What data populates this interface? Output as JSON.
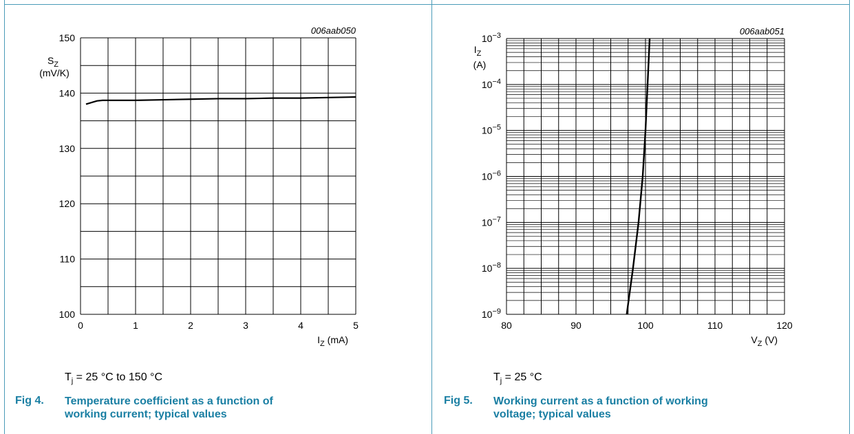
{
  "chart_data": [
    {
      "type": "line",
      "figure_id": "006aab050",
      "ylabel": "S",
      "ylabel_sub": "Z",
      "ylabel_unit": "(mV/K)",
      "xlabel": "I",
      "xlabel_sub": "Z",
      "xlabel_unit": "(mA)",
      "xlim": [
        0,
        5
      ],
      "ylim": [
        100,
        150
      ],
      "xticks": [
        0,
        1,
        2,
        3,
        4,
        5
      ],
      "xtick_labels": [
        "0",
        "1",
        "2",
        "3",
        "4",
        "5"
      ],
      "yticks": [
        100,
        110,
        120,
        130,
        140,
        150
      ],
      "ytick_labels": [
        "100",
        "110",
        "120",
        "130",
        "140",
        "150"
      ],
      "grid": true,
      "series": [
        {
          "x": [
            0.1,
            0.2,
            0.3,
            0.4,
            0.6,
            1.0,
            1.5,
            2.0,
            2.5,
            3.0,
            3.5,
            4.0,
            4.5,
            5.0
          ],
          "y": [
            138.0,
            138.3,
            138.6,
            138.7,
            138.7,
            138.7,
            138.8,
            138.9,
            139.0,
            139.0,
            139.1,
            139.1,
            139.2,
            139.3
          ]
        }
      ]
    },
    {
      "type": "line",
      "figure_id": "006aab051",
      "ylabel": "I",
      "ylabel_sub": "Z",
      "ylabel_unit": "(A)",
      "xlabel": "V",
      "xlabel_sub": "Z",
      "xlabel_unit": "(V)",
      "xlim": [
        80,
        120
      ],
      "ylim": [
        1e-09,
        0.001
      ],
      "yscale": "log",
      "xticks": [
        80,
        90,
        100,
        110,
        120
      ],
      "xtick_labels": [
        "80",
        "90",
        "100",
        "110",
        "120"
      ],
      "yticks": [
        1e-09,
        1e-08,
        1e-07,
        1e-06,
        1e-05,
        0.0001,
        0.001
      ],
      "ytick_labels": [
        {
          "base": "10",
          "exp": "−9"
        },
        {
          "base": "10",
          "exp": "−8"
        },
        {
          "base": "10",
          "exp": "−7"
        },
        {
          "base": "10",
          "exp": "−6"
        },
        {
          "base": "10",
          "exp": "−5"
        },
        {
          "base": "10",
          "exp": "−4"
        },
        {
          "base": "10",
          "exp": "−3"
        }
      ],
      "grid": true,
      "series": [
        {
          "x": [
            97.3,
            98.2,
            99.0,
            99.6,
            100.0,
            100.3,
            100.6
          ],
          "y": [
            1e-09,
            1e-08,
            1e-07,
            1e-06,
            1e-05,
            0.0001,
            0.001
          ]
        }
      ]
    }
  ],
  "captions": {
    "left": {
      "condition_prefix": "T",
      "condition_sub": "j",
      "condition_rest": " = 25 °C to 150 °C",
      "fig_number": "Fig 4.",
      "fig_line1": "Temperature coefficient as a function of",
      "fig_line2": "working current; typical values"
    },
    "right": {
      "condition_prefix": "T",
      "condition_sub": "j",
      "condition_rest": " = 25 °C",
      "fig_number": "Fig 5.",
      "fig_line1": "Working current as a function of working",
      "fig_line2": "voltage; typical values"
    }
  }
}
